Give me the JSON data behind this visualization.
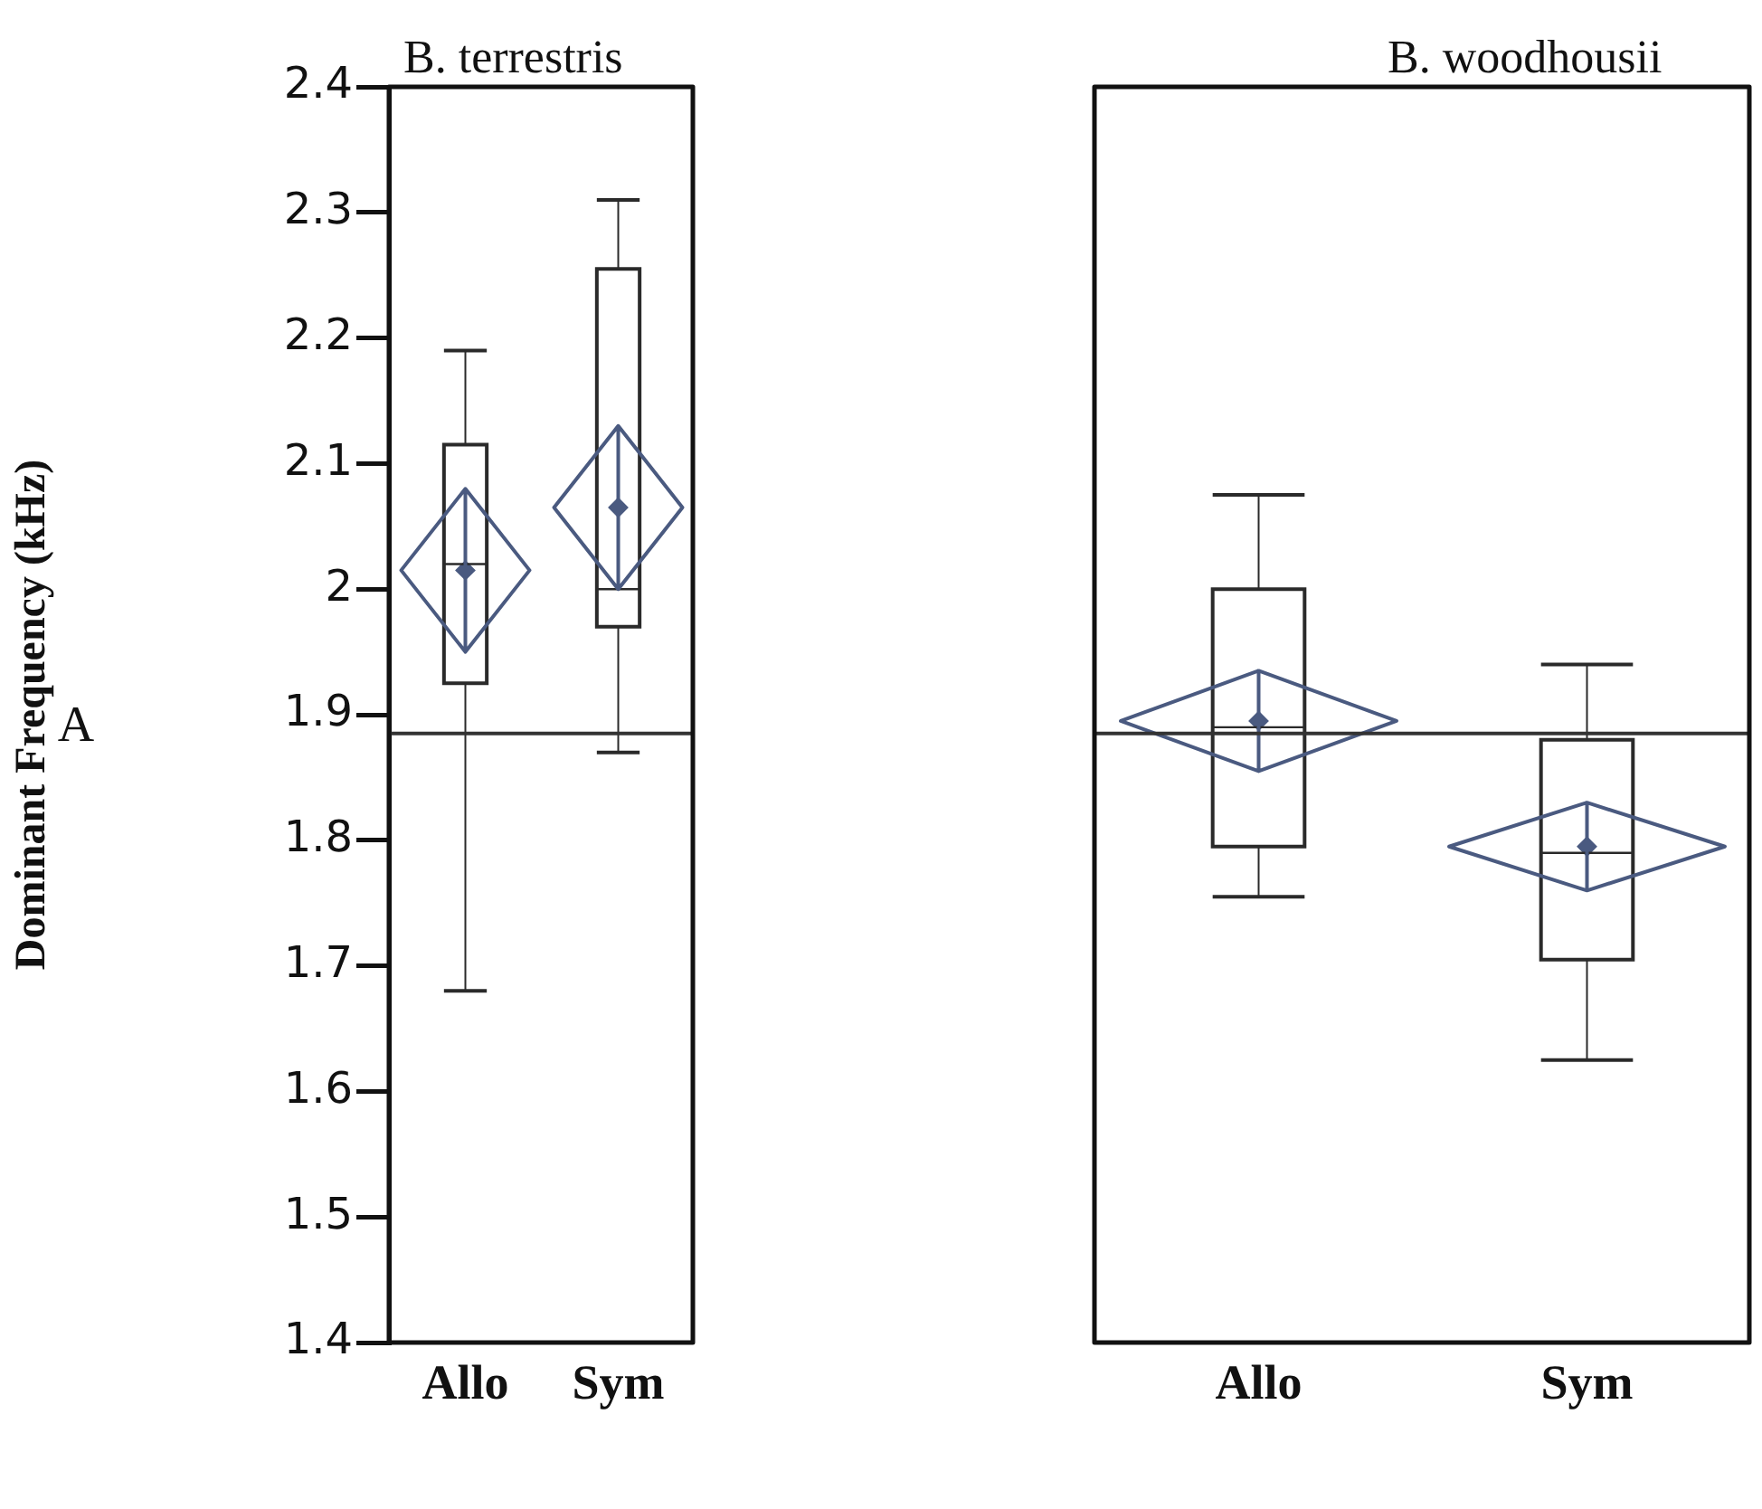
{
  "chart_data": [
    {
      "type": "box",
      "title": "B. terrestris",
      "ylabel": "Dominant Frequency (kHz)",
      "categories": [
        "Allo",
        "Sym"
      ],
      "color": "#2a2a2a",
      "boxes": [
        {
          "low": 1.68,
          "q1": 1.925,
          "median": 2.02,
          "q3": 2.115,
          "high": 2.19
        },
        {
          "low": 1.87,
          "q1": 1.97,
          "median": 2.0,
          "q3": 2.255,
          "high": 2.31
        }
      ],
      "series": [
        {
          "type": "scatter",
          "marker": "diamond",
          "color": "#4a5a80",
          "x": [
            "Allo",
            "Sym"
          ],
          "values": [
            2.015,
            2.065
          ],
          "errors": [
            [
              1.95,
              2.08
            ],
            [
              2.0,
              2.13
            ]
          ]
        }
      ],
      "ref_lines": [
        {
          "axis": "y",
          "value": 1.885
        }
      ],
      "ylim": [
        1.4,
        2.4
      ],
      "yticks": [
        1.4,
        1.5,
        1.6,
        1.7,
        1.8,
        1.9,
        2.0,
        2.1,
        2.2,
        2.3,
        2.4
      ],
      "annotations": [
        "A"
      ]
    },
    {
      "type": "box",
      "title": "B. woodhousii",
      "categories": [
        "Allo",
        "Sym"
      ],
      "color": "#2a2a2a",
      "boxes": [
        {
          "low": 1.755,
          "q1": 1.795,
          "median": 1.89,
          "q3": 2.0,
          "high": 2.075
        },
        {
          "low": 1.625,
          "q1": 1.705,
          "median": 1.79,
          "q3": 1.88,
          "high": 1.94
        }
      ],
      "series": [
        {
          "type": "scatter",
          "marker": "diamond",
          "color": "#4a5a80",
          "x": [
            "Allo",
            "Sym"
          ],
          "values": [
            1.895,
            1.795
          ],
          "errors": [
            [
              1.855,
              1.935
            ],
            [
              1.76,
              1.83
            ]
          ]
        }
      ],
      "ref_lines": [
        {
          "axis": "y",
          "value": 1.885
        }
      ],
      "ylim": [
        1.4,
        2.4
      ],
      "yticks": [
        1.4,
        1.5,
        1.6,
        1.7,
        1.8,
        1.9,
        2.0,
        2.1,
        2.2,
        2.3,
        2.4
      ],
      "tick_labels": "x"
    }
  ]
}
